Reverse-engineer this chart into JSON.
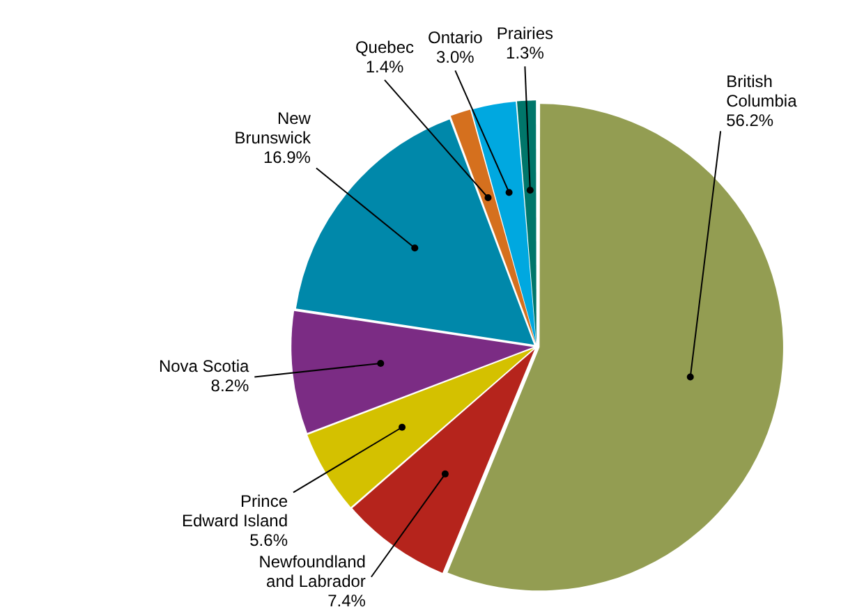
{
  "chart_data": {
    "type": "pie",
    "categories": [
      "British Columbia",
      "Newfoundland and Labrador",
      "Prince Edward Island",
      "Nova Scotia",
      "New Brunswick",
      "Quebec",
      "Ontario",
      "Prairies"
    ],
    "values": [
      56.2,
      7.4,
      5.6,
      8.2,
      16.9,
      1.4,
      3.0,
      1.3
    ],
    "value_labels": [
      "56.2%",
      "7.4%",
      "5.6%",
      "8.2%",
      "16.9%",
      "1.4%",
      "3.0%",
      "1.3%"
    ],
    "colors": [
      "#939d52",
      "#b5241c",
      "#d4c100",
      "#7b2c84",
      "#0088aa",
      "#d5701e",
      "#00a8e0",
      "#00766a"
    ],
    "legend": false
  }
}
